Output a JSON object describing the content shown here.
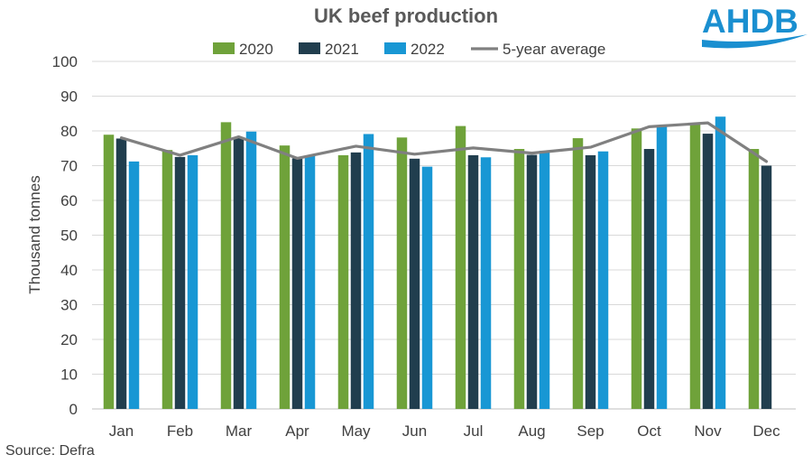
{
  "chart_data": {
    "type": "bar",
    "title": "UK beef production",
    "ylabel": "Thousand tonnes",
    "xlabel": "",
    "ylim": [
      0,
      100
    ],
    "yticks": [
      0,
      10,
      20,
      30,
      40,
      50,
      60,
      70,
      80,
      90,
      100
    ],
    "grid": true,
    "legend_position": "top",
    "categories": [
      "Jan",
      "Feb",
      "Mar",
      "Apr",
      "May",
      "Jun",
      "Jul",
      "Aug",
      "Sep",
      "Oct",
      "Nov",
      "Dec"
    ],
    "series": [
      {
        "name": "2020",
        "type": "bar",
        "color": "#6fa23a",
        "values": [
          78.9,
          74.5,
          82.5,
          75.8,
          73.0,
          78.1,
          81.4,
          74.8,
          77.9,
          80.7,
          82.0,
          74.8
        ]
      },
      {
        "name": "2021",
        "type": "bar",
        "color": "#213e4e",
        "values": [
          77.8,
          72.5,
          78.2,
          72.1,
          73.8,
          72.0,
          73.0,
          73.1,
          73.0,
          74.8,
          79.2,
          70.0
        ]
      },
      {
        "name": "2022",
        "type": "bar",
        "color": "#1897d4",
        "values": [
          71.2,
          73.0,
          79.8,
          72.9,
          79.1,
          69.7,
          72.4,
          74.3,
          74.1,
          81.3,
          84.1,
          null
        ]
      },
      {
        "name": "5-year average",
        "type": "line",
        "color": "#808080",
        "values": [
          78.0,
          73.0,
          78.3,
          72.1,
          75.6,
          73.3,
          75.1,
          73.6,
          75.3,
          81.2,
          82.3,
          71.2
        ]
      }
    ]
  },
  "source": "Source: Defra",
  "logo": {
    "text": "AHDB",
    "color": "#1a8fd0"
  }
}
